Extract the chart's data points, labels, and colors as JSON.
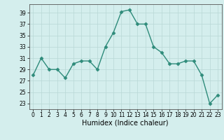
{
  "title": "",
  "xlabel": "Humidex (Indice chaleur)",
  "x": [
    0,
    1,
    2,
    3,
    4,
    5,
    6,
    7,
    8,
    9,
    10,
    11,
    12,
    13,
    14,
    15,
    16,
    17,
    18,
    19,
    20,
    21,
    22,
    23
  ],
  "y": [
    28,
    31,
    29,
    29,
    27.5,
    30,
    30.5,
    30.5,
    29,
    33,
    35.5,
    39.2,
    39.5,
    37,
    37,
    33,
    32,
    30,
    30,
    30.5,
    30.5,
    28,
    23,
    24.5
  ],
  "line_color": "#2e8b7a",
  "marker": "D",
  "marker_size": 2.5,
  "background_color": "#d4eeed",
  "grid_color": "#b8d8d6",
  "ylim": [
    22,
    40.5
  ],
  "xlim": [
    -0.5,
    23.5
  ],
  "yticks": [
    23,
    25,
    27,
    29,
    31,
    33,
    35,
    37,
    39
  ],
  "xticks": [
    0,
    1,
    2,
    3,
    4,
    5,
    6,
    7,
    8,
    9,
    10,
    11,
    12,
    13,
    14,
    15,
    16,
    17,
    18,
    19,
    20,
    21,
    22,
    23
  ],
  "tick_fontsize": 5.5,
  "xlabel_fontsize": 7
}
